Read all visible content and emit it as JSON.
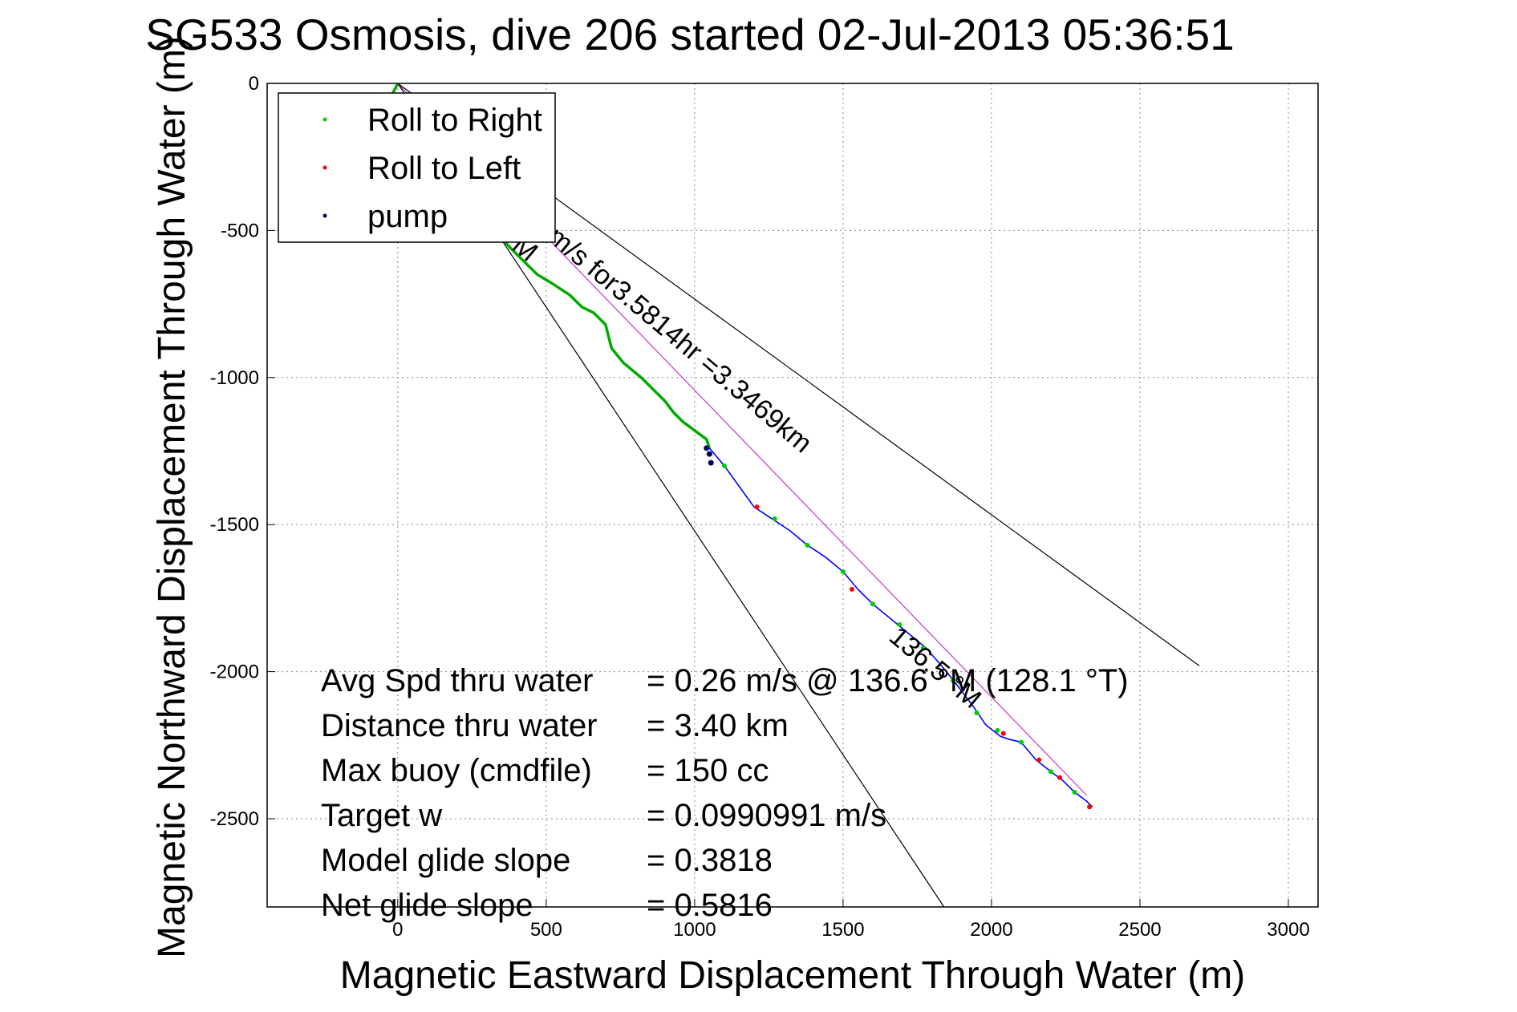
{
  "chart_data": {
    "type": "line",
    "title": "SG533 Osmosis, dive 206 started 02-Jul-2013 05:36:51",
    "xlabel": "Magnetic Eastward Displacement Through Water (m)",
    "ylabel": "Magnetic Northward Displacement Through Water (m)",
    "xlim": [
      -440,
      3100
    ],
    "ylim": [
      -2800,
      0
    ],
    "xticks": [
      0,
      500,
      1000,
      1500,
      2000,
      2500,
      3000
    ],
    "yticks": [
      0,
      -500,
      -1000,
      -1500,
      -2000,
      -2500
    ],
    "grid": true,
    "legend_position": "top-left",
    "legend": [
      {
        "label": "Roll to Right",
        "color": "#00cc00"
      },
      {
        "label": "Roll to Left",
        "color": "#ff0000"
      },
      {
        "label": "pump",
        "color": "#000066"
      }
    ],
    "series": [
      {
        "role": "glider_track",
        "color": "#00aa00",
        "x": [
          0,
          -20,
          20,
          100,
          200,
          300,
          380,
          420,
          470,
          520,
          580,
          620,
          660,
          700,
          720,
          760,
          820,
          860,
          900,
          930,
          960,
          1000,
          1040,
          1050
        ],
        "y": [
          0,
          -40,
          -120,
          -240,
          -360,
          -470,
          -560,
          -600,
          -650,
          -680,
          -720,
          -760,
          -780,
          -820,
          -900,
          -950,
          -1000,
          -1040,
          -1080,
          -1120,
          -1150,
          -1180,
          -1210,
          -1240
        ]
      },
      {
        "role": "later_track",
        "color": "#0000ff",
        "x": [
          1050,
          1100,
          1150,
          1200,
          1260,
          1320,
          1380,
          1440,
          1500,
          1550,
          1600,
          1660,
          1720,
          1780,
          1840,
          1880,
          1940,
          1980,
          2030,
          2060,
          2100,
          2150,
          2200,
          2240,
          2280,
          2320,
          2340
        ],
        "y": [
          -1240,
          -1300,
          -1370,
          -1440,
          -1480,
          -1520,
          -1570,
          -1610,
          -1660,
          -1720,
          -1770,
          -1820,
          -1870,
          -1920,
          -1990,
          -2040,
          -2120,
          -2180,
          -2220,
          -2230,
          -2240,
          -2300,
          -2340,
          -2370,
          -2410,
          -2440,
          -2460
        ]
      }
    ],
    "pump_points": {
      "x": [
        1040,
        1050,
        1055
      ],
      "y": [
        -1240,
        -1260,
        -1290
      ]
    },
    "roll_right_points": {
      "x": [
        1100,
        1270,
        1380,
        1500,
        1600,
        1690,
        1770,
        1870,
        1950,
        2020,
        2100,
        2200,
        2280
      ],
      "y": [
        -1300,
        -1480,
        -1570,
        -1660,
        -1770,
        -1840,
        -1920,
        -2030,
        -2140,
        -2200,
        -2240,
        -2340,
        -2410
      ]
    },
    "roll_left_points": {
      "x": [
        1210,
        1530,
        2040,
        2160,
        2230,
        2330
      ],
      "y": [
        -1440,
        -1720,
        -2210,
        -2300,
        -2360,
        -2460
      ]
    },
    "reference_lines": [
      {
        "role": "bearing",
        "color": "#cc33cc",
        "x": [
          0,
          2320
        ],
        "y": [
          0,
          -2420
        ]
      },
      {
        "role": "envelope",
        "color": "#000000",
        "x": [
          0,
          1840
        ],
        "y": [
          0,
          -2800
        ]
      },
      {
        "role": "envelope",
        "color": "#000000",
        "x": [
          0,
          2700
        ],
        "y": [
          0,
          -1980
        ]
      }
    ],
    "annotations": [
      {
        "text": "m/s for3.5814hr =3.3469km",
        "x": 500,
        "y": -530,
        "angle_deg": 40
      },
      {
        "text": "M",
        "x": 380,
        "y": -560,
        "angle_deg": 40
      },
      {
        "text": "136.5 °M",
        "x": 1650,
        "y": -1890,
        "angle_deg": 40
      }
    ],
    "stats": [
      {
        "label": "Avg Spd thru water",
        "value": "=  0.26 m/s @ 136.6 °M (128.1 °T)"
      },
      {
        "label": "Distance thru water",
        "value": "=  3.40 km"
      },
      {
        "label": "Max buoy (cmdfile)",
        "value": "= 150 cc"
      },
      {
        "label": "Target w",
        "value": "= 0.0990991 m/s"
      },
      {
        "label": "Model glide slope",
        "value": "= 0.3818"
      },
      {
        "label": "Net glide slope",
        "value": "= 0.5816"
      }
    ]
  }
}
